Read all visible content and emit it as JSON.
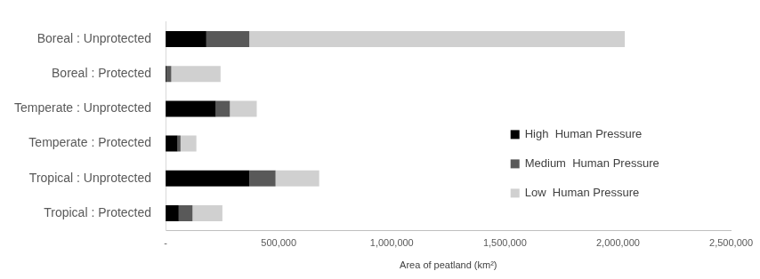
{
  "chart_data": {
    "type": "bar",
    "orientation": "horizontal",
    "stacked": true,
    "categories": [
      "Boreal : Unprotected",
      "Boreal : Protected",
      "Temperate : Unprotected",
      "Temperate : Protected",
      "Tropical : Unprotected",
      "Tropical : Protected"
    ],
    "series": [
      {
        "name": "High  Human Pressure",
        "color": "#000000",
        "values": [
          180000,
          5000,
          222000,
          53000,
          370000,
          58000
        ]
      },
      {
        "name": "Medium  Human Pressure",
        "color": "#595959",
        "values": [
          190000,
          20000,
          62000,
          13000,
          116000,
          61000
        ]
      },
      {
        "name": "Low  Human Pressure",
        "color": "#d0d0d0",
        "values": [
          1660000,
          218000,
          119000,
          70000,
          193000,
          132000
        ]
      }
    ],
    "xlabel": "Area of peatland (km²)",
    "xlim": [
      0,
      2500000
    ],
    "xticks": [
      {
        "value": 0,
        "label": "-"
      },
      {
        "value": 500000,
        "label": "500,000"
      },
      {
        "value": 1000000,
        "label": "1,000,000"
      },
      {
        "value": 1500000,
        "label": "1,500,000"
      },
      {
        "value": 2000000,
        "label": "2,000,000"
      },
      {
        "value": 2500000,
        "label": "2,500,000"
      }
    ],
    "grid": false,
    "legend": "right"
  }
}
